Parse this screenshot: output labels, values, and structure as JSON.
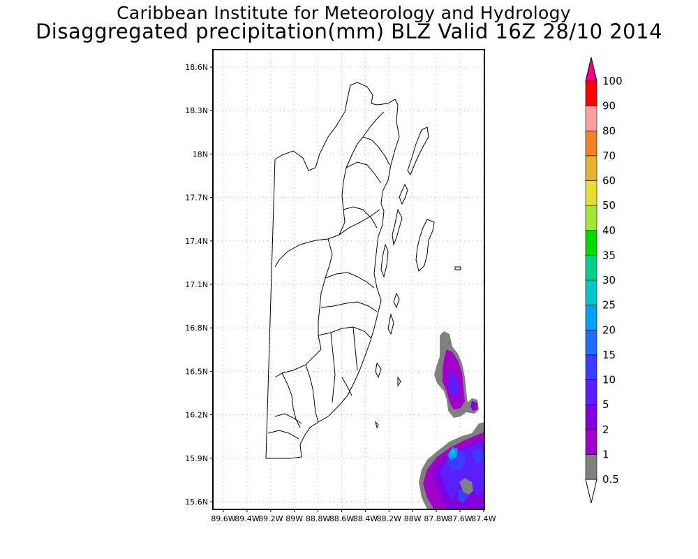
{
  "header": {
    "title": "Caribbean Institute for Meteorology and Hydrology",
    "subtitle": "Disaggregated precipitation(mm) BLZ Valid 16Z 28/10 2014"
  },
  "map": {
    "region": "Belize",
    "lon_range": [
      -89.7,
      -87.3
    ],
    "lat_range": [
      15.54,
      18.72
    ],
    "lat_ticks": [
      "18.6N",
      "18.3N",
      "18N",
      "17.7N",
      "17.4N",
      "17.1N",
      "16.8N",
      "16.5N",
      "16.2N",
      "15.9N",
      "15.6N"
    ],
    "lon_ticks": [
      "89.6W",
      "89.4W",
      "89.2W",
      "89W",
      "88.8W",
      "88.6W",
      "88.4W",
      "88.2W",
      "88W",
      "87.8W",
      "87.6W",
      "87.4W"
    ],
    "grid": true
  },
  "legend": {
    "levels": [
      "0.5",
      "1",
      "2",
      "5",
      "10",
      "15",
      "20",
      "25",
      "30",
      "35",
      "40",
      "50",
      "60",
      "70",
      "80",
      "90",
      "100"
    ],
    "colors": [
      "#808080",
      "#a000c8",
      "#8200dc",
      "#5a1eff",
      "#3c3cff",
      "#1e6eff",
      "#00a0ff",
      "#00c8c8",
      "#00d28c",
      "#00dc00",
      "#a0e632",
      "#e6dc32",
      "#e6af2d",
      "#f08228",
      "#faa0a0",
      "#ff0000",
      "#ff3c50",
      "#f00082"
    ]
  }
}
